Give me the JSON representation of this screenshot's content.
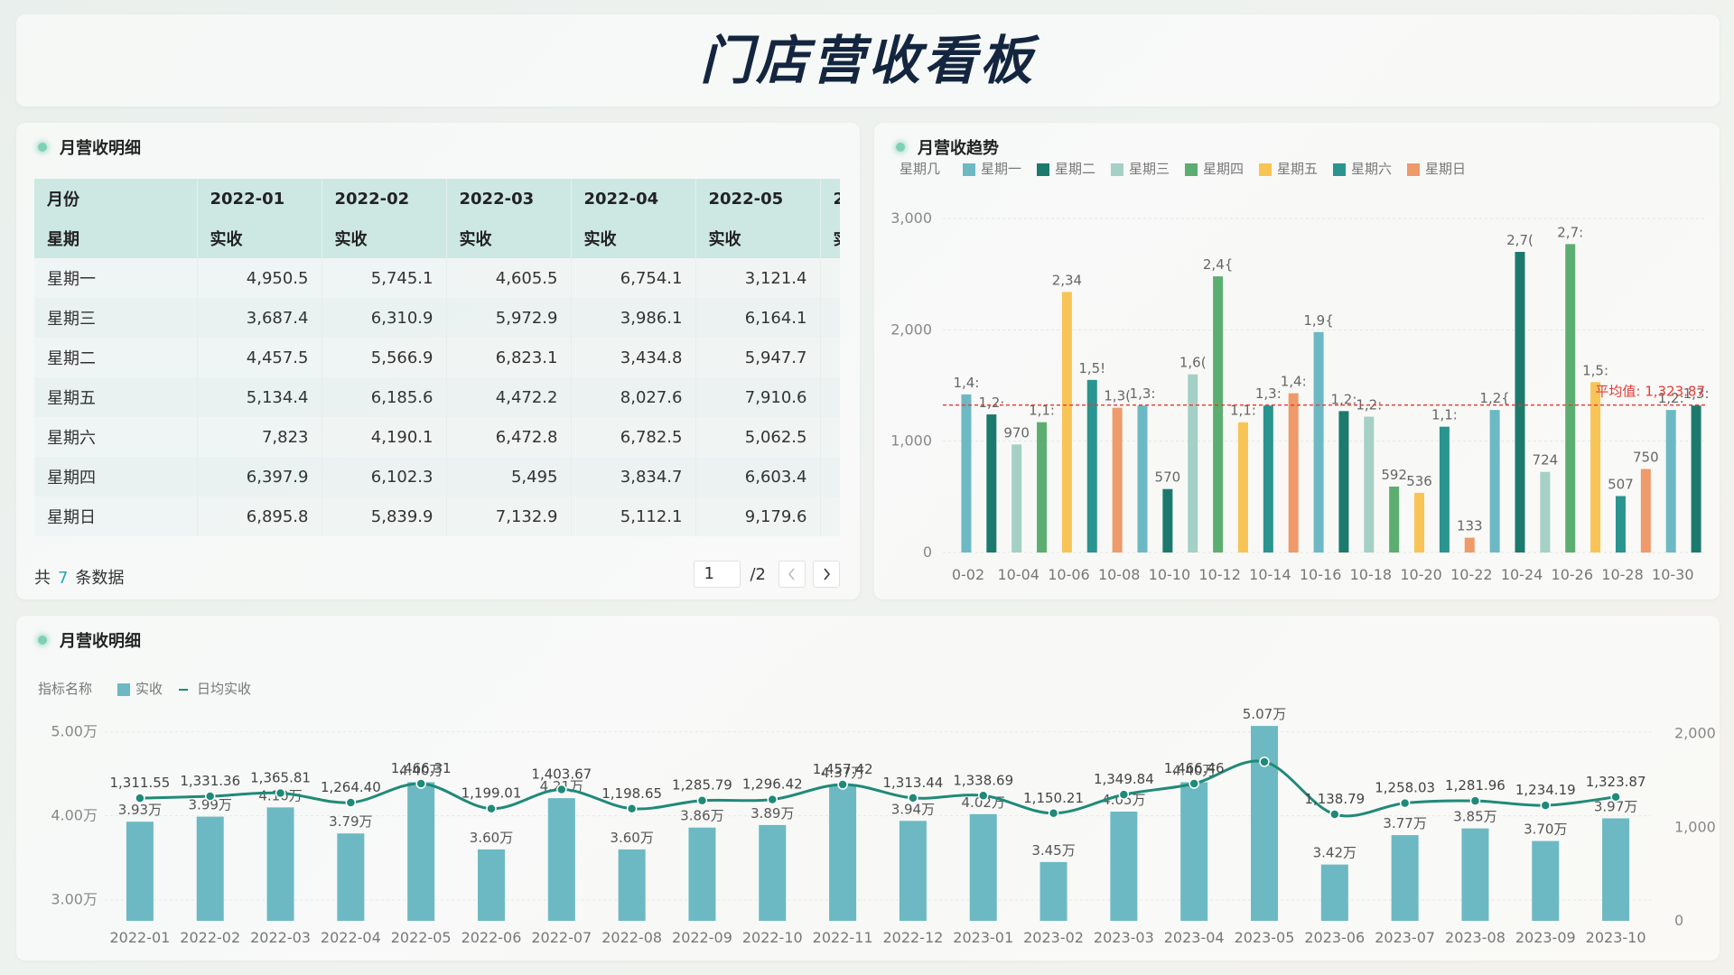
{
  "page": {
    "title": "门店营收看板"
  },
  "table_panel": {
    "title": "月营收明细",
    "headers_row1": [
      "月份",
      "2022-01",
      "2022-02",
      "2022-03",
      "2022-04",
      "2022-05",
      "2"
    ],
    "headers_row2": [
      "星期",
      "实收",
      "实收",
      "实收",
      "实收",
      "实收",
      "实"
    ],
    "rows": [
      [
        "星期一",
        "4,950.5",
        "5,745.1",
        "4,605.5",
        "6,754.1",
        "3,121.4"
      ],
      [
        "星期三",
        "3,687.4",
        "6,310.9",
        "5,972.9",
        "3,986.1",
        "6,164.1"
      ],
      [
        "星期二",
        "4,457.5",
        "5,566.9",
        "6,823.1",
        "3,434.8",
        "5,947.7"
      ],
      [
        "星期五",
        "5,134.4",
        "6,185.6",
        "4,472.2",
        "8,027.6",
        "7,910.6"
      ],
      [
        "星期六",
        "7,823",
        "4,190.1",
        "6,472.8",
        "6,782.5",
        "5,062.5"
      ],
      [
        "星期四",
        "6,397.9",
        "6,102.3",
        "5,495",
        "3,834.7",
        "6,603.4"
      ],
      [
        "星期日",
        "6,895.8",
        "5,839.9",
        "7,132.9",
        "5,112.1",
        "9,179.6"
      ]
    ],
    "pager": {
      "prefix": "共",
      "count": "7",
      "suffix": "条数据",
      "current_page": "1",
      "total_pages": "/2",
      "prev_icon": "chevron-left-icon",
      "next_icon": "chevron-right-icon"
    }
  },
  "trend_panel": {
    "title": "月营收趋势"
  },
  "bottom_panel": {
    "title": "月营收明细"
  },
  "chart_data": [
    {
      "type": "bar",
      "legend_title": "星期几",
      "legend": [
        {
          "name": "星期一",
          "color": "#6cb9c3"
        },
        {
          "name": "星期二",
          "color": "#1c7a6d"
        },
        {
          "name": "星期三",
          "color": "#a5d0c6"
        },
        {
          "name": "星期四",
          "color": "#5cae70"
        },
        {
          "name": "星期五",
          "color": "#f8c456"
        },
        {
          "name": "星期六",
          "color": "#2a9490"
        },
        {
          "name": "星期日",
          "color": "#ee9a6a"
        }
      ],
      "y_ticks": [
        "0",
        "1,000",
        "2,000",
        "3,000"
      ],
      "ylim": [
        0,
        3000
      ],
      "x_tick_labels": [
        "0-02",
        "10-04",
        "10-06",
        "10-08",
        "10-10",
        "10-12",
        "10-14",
        "10-16",
        "10-18",
        "10-20",
        "10-22",
        "10-24",
        "10-26",
        "10-28",
        "10-30"
      ],
      "bars": [
        {
          "x": "10-02",
          "value": 1420,
          "label": "1,4:",
          "series": "星期一"
        },
        {
          "x": "10-03",
          "value": 1240,
          "label": "1,2·",
          "series": "星期二"
        },
        {
          "x": "10-04",
          "value": 970,
          "label": "970",
          "series": "星期三"
        },
        {
          "x": "10-05",
          "value": 1170,
          "label": "1,1:",
          "series": "星期四"
        },
        {
          "x": "10-06",
          "value": 2340,
          "label": "2,34",
          "series": "星期五"
        },
        {
          "x": "10-07",
          "value": 1550,
          "label": "1,5!",
          "series": "星期六"
        },
        {
          "x": "10-08",
          "value": 1300,
          "label": "1,3(",
          "series": "星期日"
        },
        {
          "x": "10-09",
          "value": 1320,
          "label": "1,3:",
          "series": "星期一"
        },
        {
          "x": "10-10",
          "value": 570,
          "label": "570",
          "series": "星期二"
        },
        {
          "x": "10-11",
          "value": 1600,
          "label": "1,6(",
          "series": "星期三"
        },
        {
          "x": "10-12",
          "value": 2480,
          "label": "2,4{",
          "series": "星期四"
        },
        {
          "x": "10-13",
          "value": 1170,
          "label": "1,1:",
          "series": "星期五"
        },
        {
          "x": "10-14",
          "value": 1320,
          "label": "1,3:",
          "series": "星期六"
        },
        {
          "x": "10-15",
          "value": 1430,
          "label": "1,4:",
          "series": "星期日"
        },
        {
          "x": "10-16",
          "value": 1980,
          "label": "1,9{",
          "series": "星期一"
        },
        {
          "x": "10-17",
          "value": 1270,
          "label": "1,2:",
          "series": "星期二"
        },
        {
          "x": "10-18",
          "value": 1220,
          "label": "1,2:",
          "series": "星期三"
        },
        {
          "x": "10-19",
          "value": 592,
          "label": "592",
          "series": "星期四"
        },
        {
          "x": "10-20",
          "value": 536,
          "label": "536",
          "series": "星期五"
        },
        {
          "x": "10-21",
          "value": 1130,
          "label": "1,1:",
          "series": "星期六"
        },
        {
          "x": "10-22",
          "value": 133,
          "label": "133",
          "series": "星期日"
        },
        {
          "x": "10-23",
          "value": 1280,
          "label": "1,2{",
          "series": "星期一"
        },
        {
          "x": "10-24",
          "value": 2700,
          "label": "2,7(",
          "series": "星期二"
        },
        {
          "x": "10-25",
          "value": 724,
          "label": "724",
          "series": "星期三"
        },
        {
          "x": "10-26",
          "value": 2770,
          "label": "2,7:",
          "series": "星期四"
        },
        {
          "x": "10-27",
          "value": 1530,
          "label": "1,5:",
          "series": "星期五"
        },
        {
          "x": "10-28",
          "value": 507,
          "label": "507",
          "series": "星期六"
        },
        {
          "x": "10-29",
          "value": 750,
          "label": "750",
          "series": "星期日"
        },
        {
          "x": "10-30",
          "value": 1280,
          "label": "1,2:",
          "series": "星期一"
        },
        {
          "x": "10-31",
          "value": 1320,
          "label": "1,3:",
          "series": "星期二"
        }
      ],
      "average_line": {
        "value": 1323.87,
        "label": "平均值: 1,323.87",
        "color": "#e53935"
      }
    },
    {
      "type": "bar+line",
      "legend_title": "指标名称",
      "series": [
        {
          "name": "实收",
          "type": "bar",
          "color": "#6cb9c3",
          "values": [
            39300,
            39900,
            41000,
            37900,
            44000,
            36000,
            42100,
            36000,
            38600,
            38900,
            43700,
            39400,
            40200,
            34500,
            40500,
            44000,
            50700,
            34200,
            37700,
            38500,
            37000,
            39700
          ],
          "labels": [
            "3.93万",
            "3.99万",
            "4.10万",
            "3.79万",
            "4.40万",
            "3.60万",
            "4.21万",
            "3.60万",
            "3.86万",
            "3.89万",
            "4.37万",
            "3.94万",
            "4.02万",
            "3.45万",
            "4.05万",
            "4.40万",
            "5.07万",
            "3.42万",
            "3.77万",
            "3.85万",
            "3.70万",
            "3.97万"
          ]
        },
        {
          "name": "日均实收",
          "type": "line",
          "color": "#1f8a78",
          "values": [
            1311.55,
            1331.36,
            1365.81,
            1264.4,
            1466.31,
            1199.01,
            1403.67,
            1198.65,
            1285.79,
            1296.42,
            1457.42,
            1313.44,
            1338.69,
            1150.21,
            1349.84,
            1466.46,
            1700,
            1138.79,
            1258.03,
            1281.96,
            1234.19,
            1323.87
          ],
          "labels": [
            "1,311.55",
            "1,331.36",
            "1,365.81",
            "1,264.40",
            "1,466.31",
            "1,199.01",
            "1,403.67",
            "1,198.65",
            "1,285.79",
            "1,296.42",
            "1,457.42",
            "1,313.44",
            "1,338.69",
            "1,150.21",
            "1,349.84",
            "1,466.46",
            "",
            "1,138.79",
            "1,258.03",
            "1,281.96",
            "1,234.19",
            "1,323.87"
          ]
        }
      ],
      "categories": [
        "2022-01",
        "2022-02",
        "2022-03",
        "2022-04",
        "2022-05",
        "2022-06",
        "2022-07",
        "2022-08",
        "2022-09",
        "2022-10",
        "2022-11",
        "2022-12",
        "2023-01",
        "2023-02",
        "2023-03",
        "2023-04",
        "2023-05",
        "2023-06",
        "2023-07",
        "2023-08",
        "2023-09",
        "2023-10"
      ],
      "y_left_ticks": [
        "3.00万",
        "4.00万",
        "5.00万"
      ],
      "y_left_range": [
        27500,
        52000
      ],
      "y_right_ticks": [
        "0",
        "1,000",
        "2,000"
      ],
      "y_right_range": [
        0,
        2200
      ]
    }
  ]
}
